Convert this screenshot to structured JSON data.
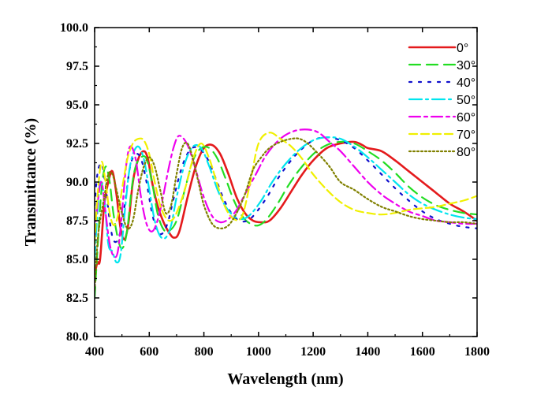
{
  "chart_data": {
    "type": "line",
    "xlabel": "Wavelength (nm)",
    "ylabel": "Transmittance (%)",
    "xlim": [
      400,
      1800
    ],
    "ylim": [
      80.0,
      100.0
    ],
    "xticks": [
      400,
      600,
      800,
      1000,
      1200,
      1400,
      1600,
      1800
    ],
    "xtick_labels": [
      "400",
      "600",
      "800",
      "1000",
      "1200",
      "1400",
      "1600",
      "1800"
    ],
    "yticks": [
      80.0,
      82.5,
      85.0,
      87.5,
      90.0,
      92.5,
      95.0,
      97.5,
      100.0
    ],
    "ytick_labels": [
      "80.0",
      "82.5",
      "85.0",
      "87.5",
      "90.0",
      "92.5",
      "95.0",
      "97.5",
      "100.0"
    ],
    "grid": false,
    "legend_position": "top-right",
    "series": [
      {
        "name": "0°",
        "color": "#e41a1c",
        "dash": "solid",
        "x": [
          400,
          410,
          420,
          435,
          450,
          465,
          480,
          495,
          510,
          525,
          540,
          560,
          580,
          595,
          610,
          630,
          650,
          670,
          690,
          710,
          740,
          770,
          800,
          830,
          860,
          890,
          920,
          950,
          980,
          1010,
          1040,
          1080,
          1120,
          1160,
          1200,
          1250,
          1300,
          1350,
          1380,
          1400,
          1450,
          1500,
          1550,
          1600,
          1650,
          1700,
          1750,
          1800
        ],
        "y": [
          84.0,
          84.8,
          85.0,
          88.5,
          90.0,
          90.7,
          89.2,
          87.0,
          86.3,
          87.5,
          90.0,
          91.5,
          92.0,
          91.5,
          90.0,
          88.5,
          87.5,
          86.8,
          86.4,
          86.8,
          89.0,
          91.0,
          92.2,
          92.4,
          91.8,
          90.5,
          89.0,
          88.0,
          87.5,
          87.4,
          87.5,
          88.3,
          89.4,
          90.5,
          91.4,
          92.2,
          92.5,
          92.6,
          92.4,
          92.2,
          92.0,
          91.4,
          90.7,
          90.0,
          89.3,
          88.6,
          88.1,
          87.5
        ]
      },
      {
        "name": "30°",
        "color": "#22dd22",
        "dash": "14,8",
        "x": [
          400,
          410,
          425,
          440,
          455,
          470,
          490,
          505,
          520,
          535,
          550,
          570,
          590,
          610,
          630,
          650,
          670,
          700,
          730,
          760,
          790,
          820,
          850,
          880,
          910,
          940,
          970,
          1000,
          1030,
          1070,
          1110,
          1150,
          1200,
          1250,
          1300,
          1350,
          1400,
          1450,
          1500,
          1550,
          1600,
          1650,
          1700,
          1750,
          1800
        ],
        "y": [
          82.5,
          85.5,
          89.5,
          91.0,
          90.0,
          87.8,
          86.0,
          85.8,
          87.0,
          89.5,
          91.0,
          91.6,
          91.5,
          90.0,
          88.0,
          87.0,
          86.8,
          87.5,
          89.5,
          91.4,
          92.2,
          92.2,
          91.5,
          90.2,
          88.8,
          87.8,
          87.3,
          87.2,
          87.6,
          88.6,
          89.8,
          90.8,
          91.8,
          92.4,
          92.6,
          92.5,
          92.0,
          91.4,
          90.6,
          89.7,
          89.0,
          88.5,
          88.2,
          88.0,
          87.9
        ]
      },
      {
        "name": "40°",
        "color": "#1010cc",
        "dash": "3,9",
        "x": [
          400,
          410,
          425,
          440,
          455,
          470,
          490,
          510,
          530,
          550,
          570,
          590,
          610,
          630,
          650,
          670,
          690,
          720,
          750,
          780,
          810,
          840,
          870,
          900,
          930,
          960,
          990,
          1030,
          1070,
          1110,
          1150,
          1200,
          1250,
          1300,
          1350,
          1400,
          1450,
          1500,
          1550,
          1600,
          1650,
          1700,
          1750,
          1800
        ],
        "y": [
          88.5,
          90.5,
          91.2,
          89.8,
          87.5,
          86.2,
          86.5,
          88.5,
          91.0,
          91.8,
          91.5,
          90.0,
          88.0,
          86.8,
          86.7,
          87.5,
          89.0,
          91.0,
          92.1,
          92.2,
          91.6,
          90.4,
          89.0,
          88.0,
          87.5,
          87.5,
          88.0,
          89.0,
          90.2,
          91.2,
          92.0,
          92.7,
          92.9,
          92.7,
          92.2,
          91.4,
          90.5,
          89.6,
          88.8,
          88.1,
          87.6,
          87.3,
          87.1,
          87.0
        ]
      },
      {
        "name": "50°",
        "color": "#00e5ee",
        "dash": "16,5,3,5",
        "x": [
          400,
          410,
          420,
          435,
          450,
          465,
          480,
          495,
          510,
          525,
          540,
          560,
          580,
          600,
          620,
          640,
          660,
          680,
          700,
          730,
          760,
          790,
          820,
          850,
          880,
          910,
          940,
          970,
          1010,
          1050,
          1100,
          1150,
          1200,
          1250,
          1300,
          1350,
          1400,
          1450,
          1500,
          1550,
          1600,
          1650,
          1700,
          1750,
          1800
        ],
        "y": [
          85.0,
          88.0,
          90.0,
          89.0,
          86.0,
          85.5,
          84.8,
          85.3,
          88.0,
          90.5,
          91.8,
          92.3,
          91.5,
          89.5,
          87.5,
          86.5,
          86.4,
          87.2,
          89.0,
          91.2,
          92.3,
          92.2,
          91.0,
          89.5,
          88.4,
          87.8,
          87.6,
          87.9,
          88.8,
          90.0,
          91.2,
          92.1,
          92.7,
          92.9,
          92.8,
          92.3,
          91.6,
          90.8,
          90.0,
          89.2,
          88.6,
          88.2,
          87.9,
          87.7,
          87.6
        ]
      },
      {
        "name": "60°",
        "color": "#ee00ee",
        "dash": "14,5,4,5",
        "x": [
          400,
          410,
          425,
          440,
          455,
          470,
          485,
          500,
          515,
          530,
          550,
          570,
          590,
          610,
          630,
          650,
          670,
          690,
          710,
          740,
          770,
          800,
          830,
          860,
          890,
          920,
          950,
          990,
          1030,
          1080,
          1130,
          1180,
          1220,
          1260,
          1300,
          1350,
          1400,
          1450,
          1500,
          1550,
          1600,
          1650,
          1700,
          1750,
          1800
        ],
        "y": [
          86.5,
          88.5,
          90.0,
          88.0,
          86.0,
          85.2,
          85.5,
          88.0,
          91.0,
          92.3,
          91.5,
          89.0,
          87.3,
          86.8,
          87.5,
          89.0,
          90.8,
          92.3,
          93.0,
          92.4,
          90.8,
          89.0,
          87.8,
          87.4,
          87.6,
          88.2,
          89.2,
          90.5,
          91.8,
          92.8,
          93.3,
          93.4,
          93.2,
          92.6,
          92.0,
          91.0,
          90.0,
          89.2,
          88.6,
          88.1,
          87.8,
          87.5,
          87.4,
          87.3,
          87.3
        ]
      },
      {
        "name": "70°",
        "color": "#f0f000",
        "dash": "10,5",
        "x": [
          400,
          410,
          425,
          440,
          455,
          470,
          485,
          500,
          520,
          540,
          560,
          580,
          600,
          620,
          640,
          660,
          680,
          700,
          730,
          760,
          790,
          820,
          850,
          880,
          910,
          940,
          970,
          1000,
          1040,
          1080,
          1120,
          1160,
          1200,
          1250,
          1300,
          1350,
          1400,
          1450,
          1500,
          1550,
          1600,
          1650,
          1700,
          1750,
          1800
        ],
        "y": [
          86.0,
          89.0,
          91.3,
          90.0,
          88.0,
          87.2,
          87.8,
          89.5,
          91.5,
          92.5,
          92.8,
          92.7,
          91.8,
          90.0,
          88.5,
          87.7,
          87.5,
          88.0,
          89.5,
          91.5,
          92.5,
          91.5,
          89.8,
          88.3,
          87.6,
          87.8,
          90.0,
          92.5,
          93.2,
          92.8,
          92.3,
          91.5,
          90.5,
          89.5,
          88.7,
          88.2,
          88.0,
          87.9,
          88.0,
          88.2,
          88.3,
          88.4,
          88.6,
          88.8,
          89.1
        ]
      },
      {
        "name": "80°",
        "color": "#808000",
        "dash": "2,3",
        "x": [
          400,
          410,
          420,
          435,
          450,
          465,
          480,
          500,
          520,
          540,
          560,
          580,
          600,
          620,
          640,
          660,
          680,
          700,
          720,
          740,
          760,
          780,
          800,
          830,
          860,
          890,
          920,
          950,
          980,
          1010,
          1040,
          1080,
          1120,
          1150,
          1180,
          1220,
          1260,
          1300,
          1350,
          1400,
          1450,
          1500,
          1550,
          1600,
          1650,
          1700,
          1750,
          1800
        ],
        "y": [
          83.0,
          86.0,
          87.5,
          89.0,
          90.5,
          90.5,
          89.5,
          88.0,
          87.0,
          87.5,
          89.5,
          91.0,
          91.6,
          91.0,
          89.5,
          88.0,
          88.5,
          90.5,
          92.2,
          92.5,
          91.5,
          90.0,
          88.5,
          87.3,
          87.0,
          87.2,
          88.0,
          89.2,
          90.8,
          91.6,
          92.2,
          92.6,
          92.8,
          92.8,
          92.5,
          91.8,
          91.0,
          90.0,
          89.5,
          88.9,
          88.4,
          88.1,
          87.8,
          87.6,
          87.5,
          87.4,
          87.4,
          87.3
        ]
      }
    ]
  }
}
